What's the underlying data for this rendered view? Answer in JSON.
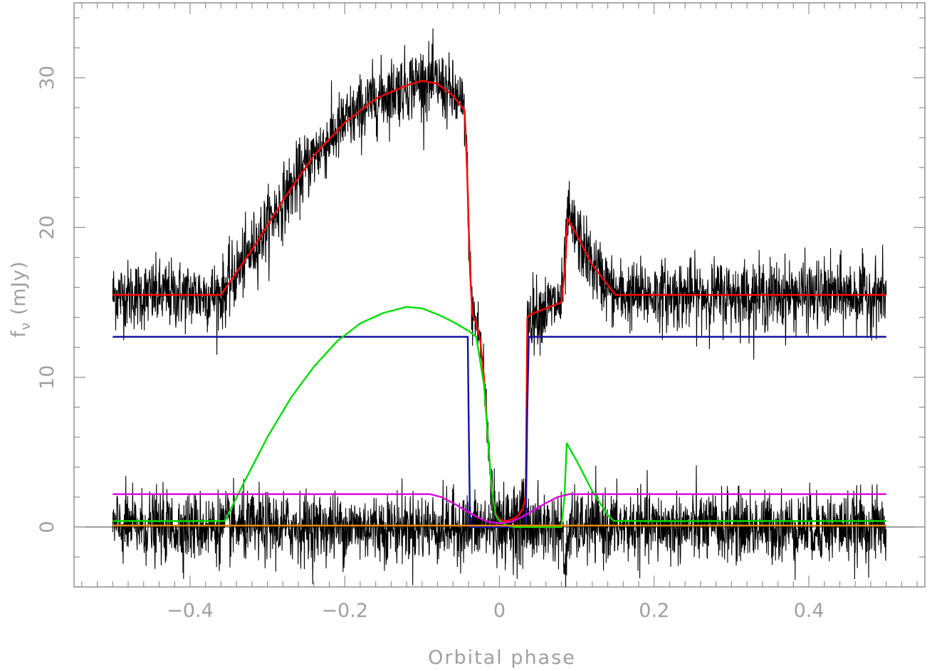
{
  "chart_data": {
    "type": "line",
    "xlabel": "Orbital phase",
    "ylabel": "f_ν (mJy)",
    "ylabel_main": "f",
    "ylabel_sub": "ν",
    "ylabel_units": " (mJy)",
    "xlim": [
      -0.55,
      0.55
    ],
    "ylim": [
      -4,
      35
    ],
    "xticks": [
      -0.4,
      -0.2,
      0,
      0.2,
      0.4
    ],
    "xtick_labels": [
      "−0.4",
      "−0.2",
      "0",
      "0.2",
      "0.4"
    ],
    "yticks": [
      0,
      10,
      20,
      30
    ],
    "ytick_labels": [
      "0",
      "10",
      "20",
      "30"
    ],
    "zero_line": true,
    "grid": false,
    "colors": {
      "data": "#000000",
      "total_model": "#ff0000",
      "white_dwarf": "#1010a0",
      "bright_spot": "#00dd00",
      "disc": "#dd00dd",
      "secondary": "#ff8800",
      "axes": "#909090",
      "zero_line": "#606060"
    },
    "series": [
      {
        "key": "data_total",
        "style": "noisy",
        "color": "#000000",
        "noise_sd": 1.0,
        "x": [
          -0.5,
          -0.36,
          -0.32,
          -0.28,
          -0.24,
          -0.2,
          -0.16,
          -0.12,
          -0.1,
          -0.08,
          -0.06,
          -0.045,
          -0.042,
          -0.038,
          -0.035,
          -0.03,
          -0.025,
          -0.02,
          -0.015,
          -0.01,
          -0.005,
          0,
          0.005,
          0.01,
          0.015,
          0.02,
          0.025,
          0.03,
          0.034,
          0.036,
          0.04,
          0.05,
          0.06,
          0.07,
          0.08,
          0.085,
          0.088,
          0.1,
          0.12,
          0.15,
          0.2,
          0.3,
          0.4,
          0.5
        ],
        "y": [
          15.5,
          15.5,
          18.5,
          21.8,
          24.8,
          27.0,
          28.6,
          29.5,
          29.8,
          29.6,
          28.8,
          27.8,
          24.0,
          17.0,
          14.2,
          13.6,
          12.5,
          10.0,
          6.0,
          2.5,
          0.9,
          0.5,
          0.4,
          0.4,
          0.5,
          0.6,
          0.8,
          1.2,
          2.0,
          14.0,
          14.2,
          14.4,
          14.6,
          14.8,
          15.0,
          17.5,
          20.6,
          19.5,
          17.5,
          15.5,
          15.5,
          15.5,
          15.5,
          15.5
        ]
      },
      {
        "key": "data_residual",
        "style": "noisy",
        "color": "#000000",
        "noise_sd": 1.0,
        "x": [
          -0.5,
          -0.3,
          -0.1,
          -0.045,
          -0.035,
          -0.025,
          -0.02,
          -0.01,
          0,
          0.01,
          0.02,
          0.03,
          0.04,
          0.08,
          0.085,
          0.09,
          0.1,
          0.2,
          0.3,
          0.4,
          0.5
        ],
        "y": [
          0,
          0,
          0,
          0,
          0,
          0,
          0,
          0,
          0,
          0,
          0,
          0,
          0,
          0,
          -3.0,
          0,
          0,
          0,
          0,
          0,
          0
        ]
      },
      {
        "key": "model_total",
        "style": "line",
        "color": "#ff0000",
        "x": [
          -0.5,
          -0.36,
          -0.32,
          -0.28,
          -0.24,
          -0.2,
          -0.16,
          -0.12,
          -0.1,
          -0.08,
          -0.06,
          -0.045,
          -0.042,
          -0.038,
          -0.035,
          -0.03,
          -0.025,
          -0.02,
          -0.015,
          -0.01,
          -0.005,
          0,
          0.005,
          0.01,
          0.015,
          0.02,
          0.025,
          0.03,
          0.034,
          0.036,
          0.04,
          0.05,
          0.06,
          0.07,
          0.08,
          0.085,
          0.088,
          0.1,
          0.12,
          0.15,
          0.2,
          0.3,
          0.4,
          0.5
        ],
        "y": [
          15.5,
          15.5,
          18.5,
          21.8,
          24.8,
          27.0,
          28.6,
          29.5,
          29.8,
          29.6,
          28.8,
          27.8,
          24.0,
          17.0,
          14.2,
          13.6,
          12.5,
          10.0,
          6.0,
          2.5,
          0.9,
          0.5,
          0.4,
          0.4,
          0.5,
          0.6,
          0.8,
          1.2,
          2.0,
          14.0,
          14.2,
          14.4,
          14.6,
          14.8,
          15.0,
          17.5,
          20.6,
          19.5,
          17.5,
          15.5,
          15.5,
          15.5,
          15.5,
          15.5
        ]
      },
      {
        "key": "white_dwarf",
        "style": "line",
        "color": "#1010a0",
        "x": [
          -0.5,
          -0.041,
          -0.04,
          -0.038,
          0.034,
          0.036,
          0.038,
          0.5
        ],
        "y": [
          12.7,
          12.7,
          8.0,
          0.0,
          0.0,
          8.0,
          12.7,
          12.7
        ]
      },
      {
        "key": "bright_spot",
        "style": "line",
        "color": "#00dd00",
        "x": [
          -0.5,
          -0.355,
          -0.33,
          -0.3,
          -0.27,
          -0.24,
          -0.21,
          -0.18,
          -0.15,
          -0.12,
          -0.1,
          -0.08,
          -0.06,
          -0.04,
          -0.03,
          -0.02,
          -0.015,
          -0.01,
          -0.005,
          0,
          0.01,
          0.02,
          0.04,
          0.06,
          0.08,
          0.084,
          0.087,
          0.1,
          0.12,
          0.14,
          0.148,
          0.2,
          0.3,
          0.4,
          0.5
        ],
        "y": [
          0.4,
          0.4,
          3.0,
          6.0,
          8.6,
          10.7,
          12.4,
          13.6,
          14.3,
          14.7,
          14.6,
          14.2,
          13.7,
          13.1,
          12.7,
          9.5,
          6.0,
          2.5,
          0.8,
          0.4,
          0.1,
          0.0,
          0.0,
          0.0,
          0.0,
          2.0,
          5.6,
          4.4,
          2.4,
          0.8,
          0.4,
          0.4,
          0.4,
          0.4,
          0.4
        ]
      },
      {
        "key": "disc",
        "style": "line",
        "color": "#dd00dd",
        "x": [
          -0.5,
          -0.1,
          -0.09,
          -0.075,
          -0.06,
          -0.045,
          -0.03,
          -0.015,
          0,
          0.015,
          0.03,
          0.045,
          0.06,
          0.075,
          0.09,
          0.1,
          0.5
        ],
        "y": [
          2.2,
          2.2,
          2.2,
          2.0,
          1.6,
          1.15,
          0.7,
          0.35,
          0.25,
          0.35,
          0.7,
          1.15,
          1.6,
          2.0,
          2.2,
          2.2,
          2.2
        ]
      },
      {
        "key": "secondary",
        "style": "line",
        "color": "#ff8800",
        "x": [
          -0.5,
          0.5
        ],
        "y": [
          0.1,
          0.1
        ]
      }
    ]
  }
}
